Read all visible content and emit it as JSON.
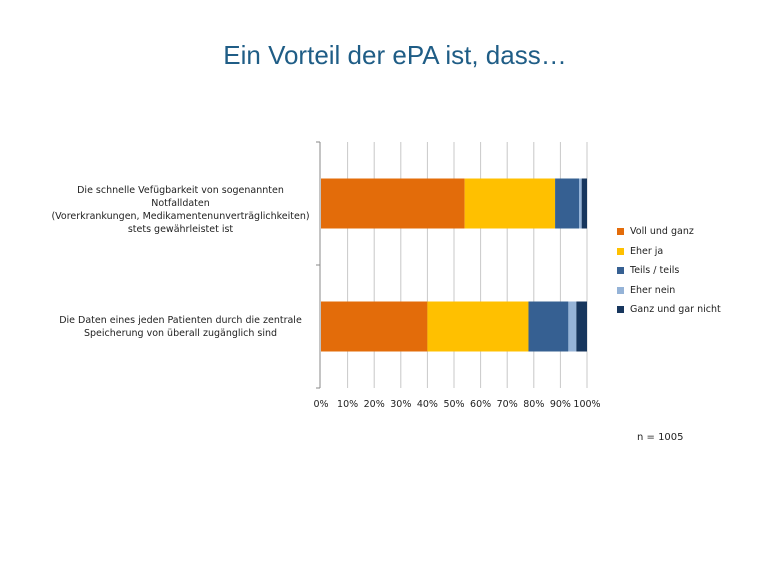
{
  "chart_data": {
    "type": "bar",
    "orientation": "horizontal",
    "stacked": "percent",
    "title": "Ein Vorteil der ePA ist, dass…",
    "categories": [
      "Die schnelle Vefügbarkeit von sogenannten Notfalldaten (Vorerkrankungen, Medikamentenunverträglichkeiten) stets gewährleistet ist",
      "Die Daten eines jeden Patienten durch die zentrale Speicherung von überall zugänglich sind"
    ],
    "category_lines": [
      [
        "Die schnelle Vefügbarkeit von sogenannten Notfalldaten",
        "(Vorerkrankungen, Medikamentenunverträglichkeiten)",
        "stets gewährleistet ist"
      ],
      [
        "Die Daten eines jeden Patienten durch die zentrale",
        "Speicherung von überall zugänglich sind"
      ]
    ],
    "series": [
      {
        "name": "Voll und ganz",
        "color": "#e36c0a",
        "values": [
          54,
          40
        ]
      },
      {
        "name": "Eher ja",
        "color": "#ffc000",
        "values": [
          34,
          38
        ]
      },
      {
        "name": "Teils / teils",
        "color": "#366092",
        "values": [
          9,
          15
        ]
      },
      {
        "name": "Eher nein",
        "color": "#95b3d7",
        "values": [
          1,
          3
        ]
      },
      {
        "name": "Ganz und gar nicht",
        "color": "#17365d",
        "values": [
          2,
          4
        ]
      }
    ],
    "xlim": [
      0,
      100
    ],
    "xticks": [
      "0%",
      "10%",
      "20%",
      "30%",
      "40%",
      "50%",
      "60%",
      "70%",
      "80%",
      "90%",
      "100%"
    ],
    "grid": "vertical",
    "legend": "right",
    "annotation": "n = 1005"
  }
}
